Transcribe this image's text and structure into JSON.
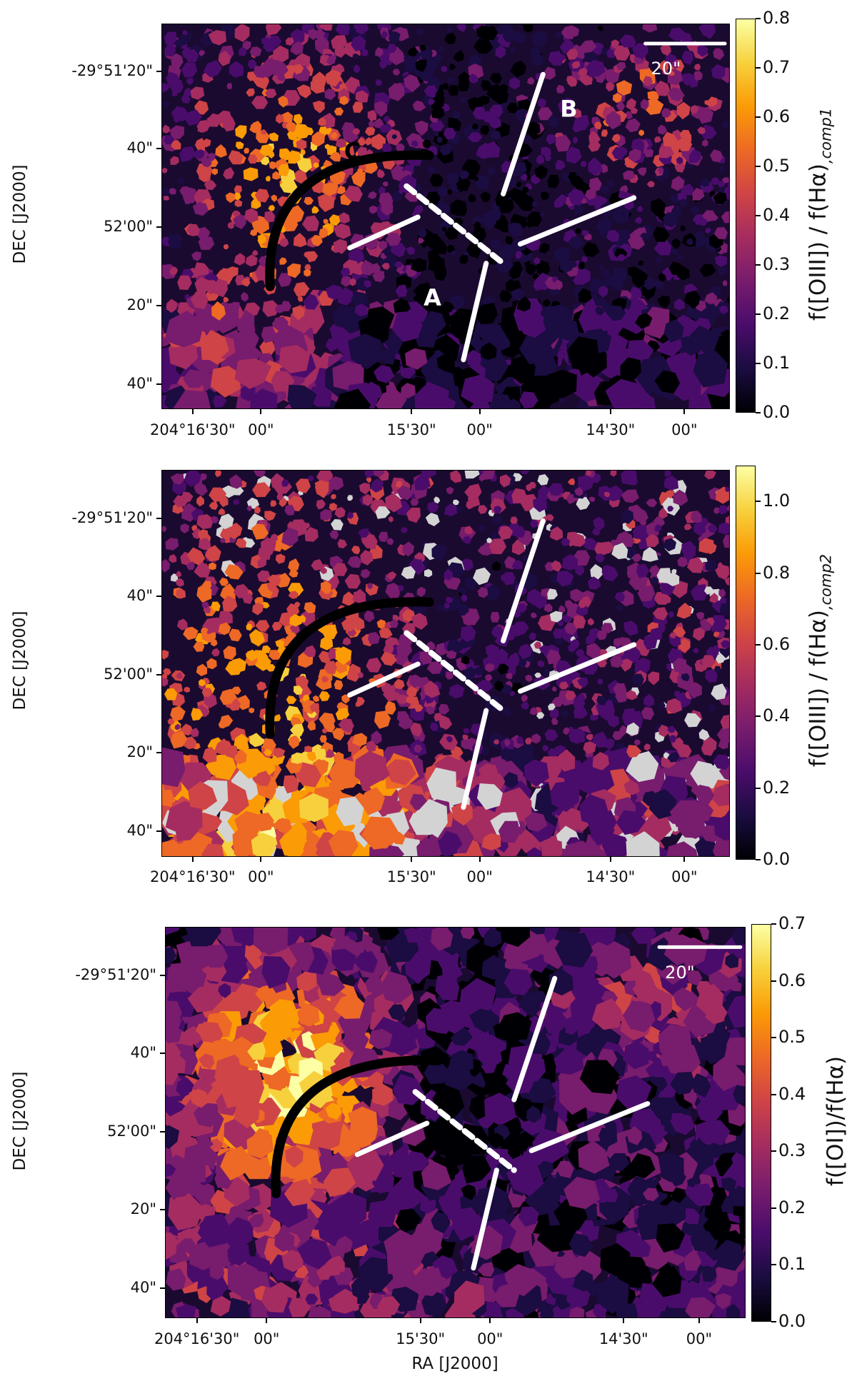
{
  "xlabel": "RA [J2000]",
  "ylabel": "DEC [J2000]",
  "x_ticks": [
    "204°16'30\"",
    "00\"",
    "15'30\"",
    "00\"",
    "14'30\"",
    "00\""
  ],
  "y_ticks": [
    "-29°51'20\"",
    "40\"",
    "52'00\"",
    "20\"",
    "40\""
  ],
  "colormap": [
    "#000004",
    "#1b0c41",
    "#4a0c6b",
    "#781c6d",
    "#a52c60",
    "#cf4446",
    "#ed6925",
    "#fb9b06",
    "#f7d13d",
    "#fcffa4"
  ],
  "nodata_color": "#d3d3d3",
  "panels": [
    {
      "colorbar_label": "f([OIII]) / f(Hα),comp1",
      "colorbar_ticks": [
        "0.0",
        "0.1",
        "0.2",
        "0.3",
        "0.4",
        "0.5",
        "0.6",
        "0.7",
        "0.8"
      ],
      "clim": [
        0.0,
        0.8
      ],
      "scalebar_label": "20\"",
      "region_labels": [
        "A",
        "B",
        "C"
      ]
    },
    {
      "colorbar_label": "f([OIII]) / f(Hα),comp2",
      "colorbar_ticks": [
        "0.0",
        "0.2",
        "0.4",
        "0.6",
        "0.8",
        "1.0"
      ],
      "clim": [
        0.0,
        1.1
      ],
      "scalebar_label": "",
      "region_labels": []
    },
    {
      "colorbar_label": "f([OI])/f(Hα)",
      "colorbar_ticks": [
        "0.0",
        "0.1",
        "0.2",
        "0.3",
        "0.4",
        "0.5",
        "0.6",
        "0.7"
      ],
      "clim": [
        0.0,
        0.7
      ],
      "scalebar_label": "20\"",
      "region_labels": []
    }
  ],
  "chart_data": [
    {
      "type": "heatmap",
      "title": "",
      "xlabel": "",
      "ylabel": "DEC [J2000]",
      "colorbar_label": "f([OIII]) / f(Hα),comp1",
      "clim": [
        0.0,
        0.8
      ],
      "x_tick_labels": [
        "204°16'30\"",
        "00\"",
        "15'30\"",
        "00\"",
        "14'30\"",
        "00\""
      ],
      "y_tick_labels": [
        "-29°51'20\"",
        "40\"",
        "52'00\"",
        "20\"",
        "40\""
      ],
      "annotations": [
        "A",
        "B",
        "C",
        "20\""
      ]
    },
    {
      "type": "heatmap",
      "title": "",
      "xlabel": "",
      "ylabel": "DEC [J2000]",
      "colorbar_label": "f([OIII]) / f(Hα),comp2",
      "clim": [
        0.0,
        1.1
      ],
      "x_tick_labels": [
        "204°16'30\"",
        "00\"",
        "15'30\"",
        "00\"",
        "14'30\"",
        "00\""
      ],
      "y_tick_labels": [
        "-29°51'20\"",
        "40\"",
        "52'00\"",
        "20\"",
        "40\""
      ],
      "annotations": []
    },
    {
      "type": "heatmap",
      "title": "",
      "xlabel": "RA [J2000]",
      "ylabel": "DEC [J2000]",
      "colorbar_label": "f([OI])/f(Hα)",
      "clim": [
        0.0,
        0.7
      ],
      "x_tick_labels": [
        "204°16'30\"",
        "00\"",
        "15'30\"",
        "00\"",
        "14'30\"",
        "00\""
      ],
      "y_tick_labels": [
        "-29°51'20\"",
        "40\"",
        "52'00\"",
        "20\"",
        "40\""
      ],
      "annotations": [
        "20\""
      ]
    }
  ]
}
